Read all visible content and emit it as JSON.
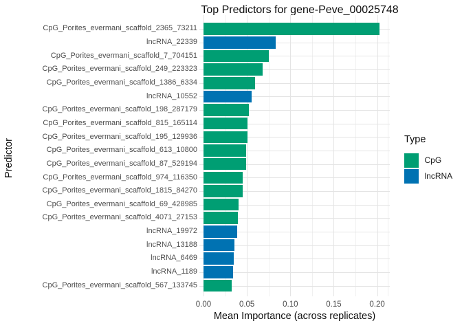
{
  "chart_data": {
    "type": "bar",
    "orientation": "horizontal",
    "title": "Top Predictors for gene-Peve_00025748",
    "xlabel": "Mean Importance (across replicates)",
    "ylabel": "Predictor",
    "xlim": [
      0,
      0.2125
    ],
    "grid": true,
    "legend": {
      "title": "Type",
      "position": "right",
      "entries": [
        {
          "label": "CpG",
          "color": "#009E73"
        },
        {
          "label": "lncRNA",
          "color": "#0072B2"
        }
      ]
    },
    "colors": {
      "CpG": "#009E73",
      "lncRNA": "#0072B2"
    },
    "x_ticks": [
      {
        "label": "0.00",
        "value": 0.0
      },
      {
        "label": "0.05",
        "value": 0.05
      },
      {
        "label": "0.10",
        "value": 0.1
      },
      {
        "label": "0.15",
        "value": 0.15
      },
      {
        "label": "0.20",
        "value": 0.2
      }
    ],
    "minor_ticks": [
      0.025,
      0.075,
      0.125,
      0.175,
      0.2125
    ],
    "bars": [
      {
        "category": "CpG_Porites_evermani_scaffold_2365_73211",
        "value": 0.2025,
        "type": "CpG"
      },
      {
        "category": "lncRNA_22339",
        "value": 0.0835,
        "type": "lncRNA"
      },
      {
        "category": "CpG_Porites_evermani_scaffold_7_704151",
        "value": 0.0752,
        "type": "CpG"
      },
      {
        "category": "CpG_Porites_evermani_scaffold_249_223323",
        "value": 0.0678,
        "type": "CpG"
      },
      {
        "category": "CpG_Porites_evermani_scaffold_1386_6334",
        "value": 0.0593,
        "type": "CpG"
      },
      {
        "category": "lncRNA_10552",
        "value": 0.0557,
        "type": "lncRNA"
      },
      {
        "category": "CpG_Porites_evermani_scaffold_198_287179",
        "value": 0.0523,
        "type": "CpG"
      },
      {
        "category": "CpG_Porites_evermani_scaffold_815_165114",
        "value": 0.0508,
        "type": "CpG"
      },
      {
        "category": "CpG_Porites_evermani_scaffold_195_129936",
        "value": 0.0504,
        "type": "CpG"
      },
      {
        "category": "CpG_Porites_evermani_scaffold_613_10800",
        "value": 0.0492,
        "type": "CpG"
      },
      {
        "category": "CpG_Porites_evermani_scaffold_87_529194",
        "value": 0.0488,
        "type": "CpG"
      },
      {
        "category": "CpG_Porites_evermani_scaffold_974_116350",
        "value": 0.0453,
        "type": "CpG"
      },
      {
        "category": "CpG_Porites_evermani_scaffold_1815_84270",
        "value": 0.045,
        "type": "CpG"
      },
      {
        "category": "CpG_Porites_evermani_scaffold_69_428985",
        "value": 0.04,
        "type": "CpG"
      },
      {
        "category": "CpG_Porites_evermani_scaffold_4071_27153",
        "value": 0.0394,
        "type": "CpG"
      },
      {
        "category": "lncRNA_19972",
        "value": 0.039,
        "type": "lncRNA"
      },
      {
        "category": "lncRNA_13188",
        "value": 0.0354,
        "type": "lncRNA"
      },
      {
        "category": "lncRNA_6469",
        "value": 0.0348,
        "type": "lncRNA"
      },
      {
        "category": "lncRNA_1189",
        "value": 0.034,
        "type": "lncRNA"
      },
      {
        "category": "CpG_Porites_evermani_scaffold_567_133745",
        "value": 0.0322,
        "type": "CpG"
      }
    ]
  }
}
